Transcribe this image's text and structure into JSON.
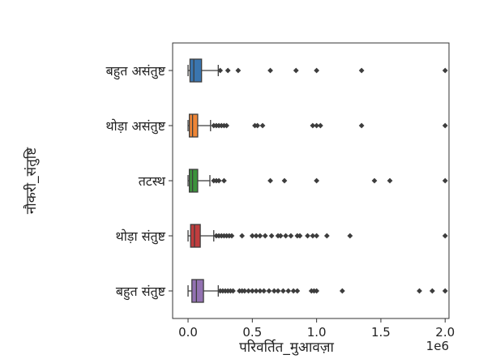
{
  "chart_data": {
    "type": "box",
    "orientation": "horizontal",
    "xlabel": "परिवर्तित_मुआवज़ा",
    "ylabel": "नौकरी_संतुष्टि",
    "x_offset_label": "1e6",
    "xlim": [
      -0.12,
      2.03
    ],
    "x_ticks": [
      0.0,
      0.5,
      1.0,
      1.5,
      2.0
    ],
    "x_tick_labels": [
      "0.0",
      "0.5",
      "1.0",
      "1.5",
      "2.0"
    ],
    "grid": false,
    "legend": "none",
    "series": [
      {
        "category": "बहुत असंतुष्ट",
        "color": "#3a75af",
        "whisker_low": 0.0,
        "q1": 0.015,
        "median": 0.045,
        "q3": 0.105,
        "whisker_high": 0.235,
        "outliers": [
          0.25,
          0.31,
          0.39,
          0.64,
          0.84,
          1.0,
          1.35,
          2.0
        ]
      },
      {
        "category": "थोड़ा असंतुष्ट",
        "color": "#ef8636",
        "whisker_low": 0.0,
        "q1": 0.01,
        "median": 0.035,
        "q3": 0.075,
        "whisker_high": 0.175,
        "outliers": [
          0.2,
          0.22,
          0.24,
          0.26,
          0.28,
          0.3,
          0.52,
          0.54,
          0.58,
          0.97,
          1.0,
          1.03,
          1.35,
          2.0
        ]
      },
      {
        "category": "तटस्थ",
        "color": "#3b923b",
        "whisker_low": 0.0,
        "q1": 0.01,
        "median": 0.035,
        "q3": 0.075,
        "whisker_high": 0.17,
        "outliers": [
          0.2,
          0.22,
          0.24,
          0.28,
          0.64,
          0.75,
          1.0,
          1.45,
          1.57,
          2.0
        ]
      },
      {
        "category": "थोड़ा संतुष्ट",
        "color": "#c03d3e",
        "whisker_low": 0.0,
        "q1": 0.02,
        "median": 0.05,
        "q3": 0.095,
        "whisker_high": 0.2,
        "outliers": [
          0.22,
          0.24,
          0.26,
          0.28,
          0.3,
          0.32,
          0.34,
          0.42,
          0.5,
          0.53,
          0.56,
          0.6,
          0.65,
          0.7,
          0.72,
          0.76,
          0.8,
          0.85,
          0.87,
          0.93,
          0.97,
          1.0,
          1.08,
          1.26,
          2.0
        ]
      },
      {
        "category": "बहुत संतुष्ट",
        "color": "#9372b2",
        "whisker_low": 0.0,
        "q1": 0.03,
        "median": 0.065,
        "q3": 0.12,
        "whisker_high": 0.235,
        "outliers": [
          0.25,
          0.27,
          0.29,
          0.31,
          0.33,
          0.35,
          0.4,
          0.42,
          0.44,
          0.47,
          0.5,
          0.53,
          0.56,
          0.59,
          0.63,
          0.67,
          0.7,
          0.74,
          0.78,
          0.82,
          0.85,
          0.96,
          0.98,
          1.0,
          1.2,
          1.8,
          1.9,
          2.0
        ]
      }
    ]
  }
}
